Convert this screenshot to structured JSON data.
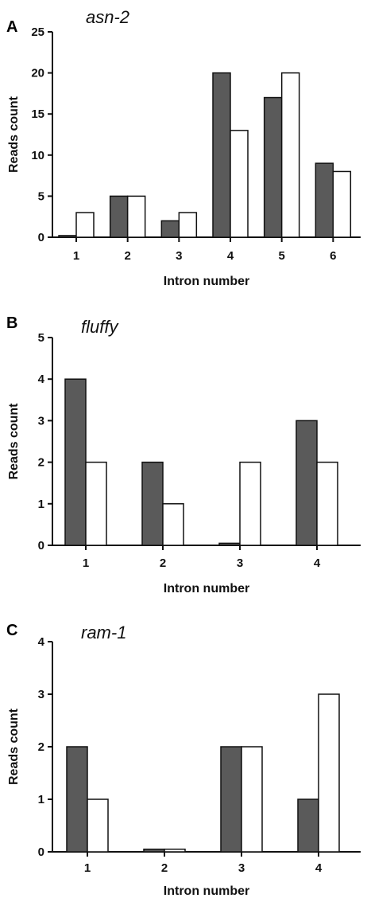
{
  "colors": {
    "series_a": "#5a5a5a",
    "series_b": "#ffffff",
    "outline": "#111111"
  },
  "chart_data": [
    {
      "type": "bar",
      "panel": "A",
      "title": "asn-2",
      "xlabel": "Intron number",
      "ylabel": "Reads count",
      "categories": [
        "1",
        "2",
        "3",
        "4",
        "5",
        "6"
      ],
      "ylim": [
        0,
        25
      ],
      "yticks": [
        "0",
        "5",
        "10",
        "15",
        "20",
        "25"
      ],
      "grid": false,
      "series": [
        {
          "values": [
            0.2,
            5,
            2,
            20,
            17,
            9
          ]
        },
        {
          "values": [
            3,
            5,
            3,
            13,
            20,
            8
          ]
        }
      ]
    },
    {
      "type": "bar",
      "panel": "B",
      "title": "fluffy",
      "xlabel": "Intron number",
      "ylabel": "Reads count",
      "categories": [
        "1",
        "2",
        "3",
        "4"
      ],
      "ylim": [
        0,
        5
      ],
      "yticks": [
        "0",
        "1",
        "2",
        "3",
        "4",
        "5"
      ],
      "grid": false,
      "series": [
        {
          "values": [
            4,
            2,
            0.05,
            3
          ]
        },
        {
          "values": [
            2,
            1,
            2,
            2
          ]
        }
      ]
    },
    {
      "type": "bar",
      "panel": "C",
      "title": "ram-1",
      "xlabel": "Intron number",
      "ylabel": "Reads count",
      "categories": [
        "1",
        "2",
        "3",
        "4"
      ],
      "ylim": [
        0,
        4
      ],
      "yticks": [
        "0",
        "1",
        "2",
        "3",
        "4"
      ],
      "grid": false,
      "series": [
        {
          "values": [
            2,
            0.05,
            2,
            1
          ]
        },
        {
          "values": [
            1,
            0.05,
            2,
            3
          ]
        }
      ]
    }
  ]
}
